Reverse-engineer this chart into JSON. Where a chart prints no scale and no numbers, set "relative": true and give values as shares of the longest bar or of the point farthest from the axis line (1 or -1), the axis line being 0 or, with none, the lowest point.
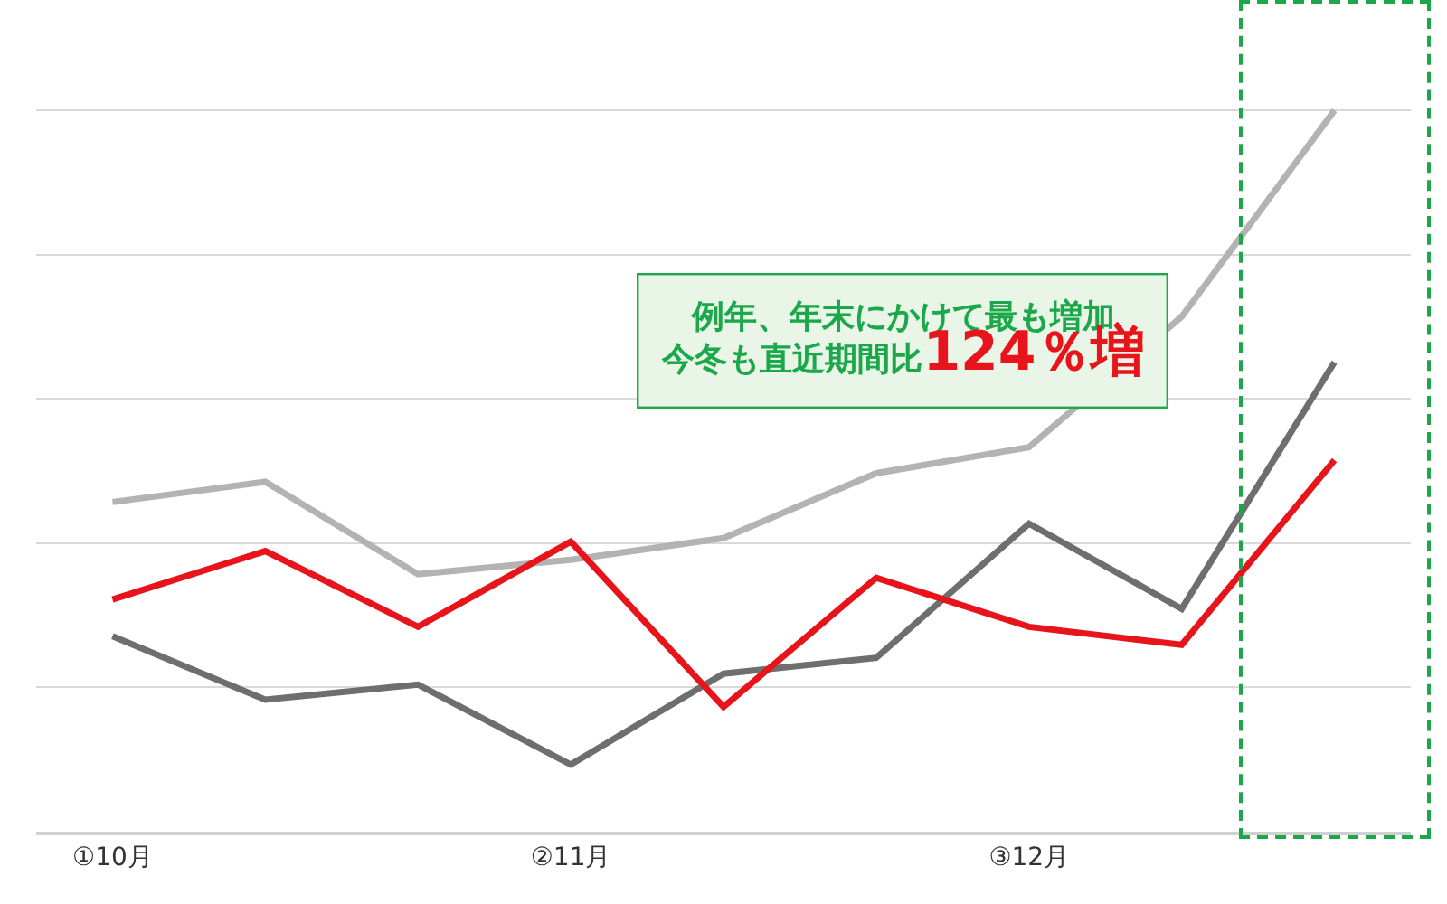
{
  "chart_data": {
    "type": "line",
    "relative": true,
    "grid": "y",
    "marker": "none",
    "line_style": "solid",
    "categories": [
      "①10月",
      null,
      null,
      "②11月",
      null,
      null,
      "③12月",
      null,
      null
    ],
    "series": [
      {
        "color": "#b3b3b3",
        "values": [
          0.457,
          0.485,
          0.357,
          0.377,
          0.407,
          0.497,
          0.533,
          0.714,
          1
        ]
      },
      {
        "color": "#6e6e6e",
        "values": [
          0.271,
          0.183,
          0.204,
          0.093,
          0.219,
          0.241,
          0.427,
          0.309,
          0.651
        ]
      },
      {
        "color": "#e8141b",
        "values": [
          0.322,
          0.389,
          0.284,
          0.402,
          0.173,
          0.352,
          0.284,
          0.259,
          0.515
        ]
      }
    ],
    "annotations": [
      "例年、年末にかけて最も増加",
      "今冬も直近期間比124％増"
    ]
  }
}
